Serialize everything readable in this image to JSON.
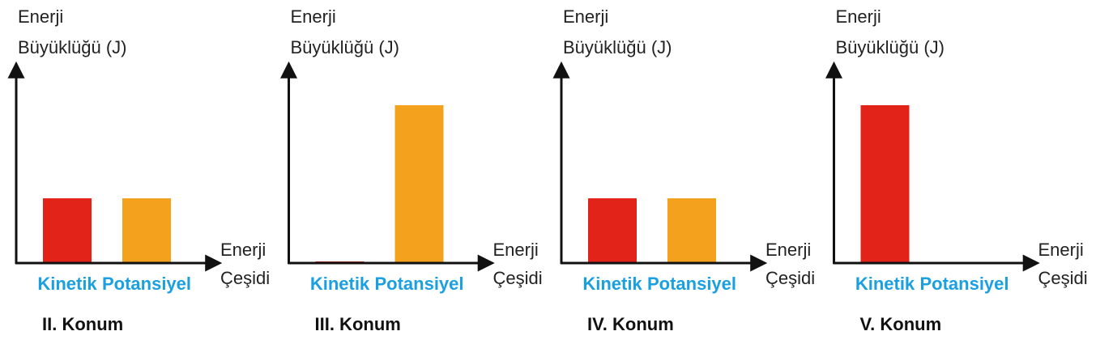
{
  "chart_data": [
    {
      "type": "bar",
      "title": "II. Konum",
      "ylabel": [
        "Enerji",
        "Büyüklüğü (J)"
      ],
      "xlabel": [
        "Enerji",
        "Çeşidi"
      ],
      "categories": [
        "Kinetik",
        "Potansiyel"
      ],
      "values": [
        80,
        80
      ],
      "colors": [
        "#e2231a",
        "#f4a11d"
      ],
      "ylim": [
        0,
        240
      ]
    },
    {
      "type": "bar",
      "title": "III. Konum",
      "ylabel": [
        "Enerji",
        "Büyüklüğü (J)"
      ],
      "xlabel": [
        "Enerji",
        "Çeşidi"
      ],
      "categories": [
        "Kinetik",
        "Potansiyel"
      ],
      "values": [
        2,
        195
      ],
      "colors": [
        "#e2231a",
        "#f4a11d"
      ],
      "ylim": [
        0,
        240
      ]
    },
    {
      "type": "bar",
      "title": "IV. Konum",
      "ylabel": [
        "Enerji",
        "Büyüklüğü (J)"
      ],
      "xlabel": [
        "Enerji",
        "Çeşidi"
      ],
      "categories": [
        "Kinetik",
        "Potansiyel"
      ],
      "values": [
        80,
        80
      ],
      "colors": [
        "#e2231a",
        "#f4a11d"
      ],
      "ylim": [
        0,
        240
      ]
    },
    {
      "type": "bar",
      "title": "V. Konum",
      "ylabel": [
        "Enerji",
        "Büyüklüğü (J)"
      ],
      "xlabel": [
        "Enerji",
        "Çeşidi"
      ],
      "categories": [
        "Kinetik",
        "Potansiyel"
      ],
      "values": [
        195,
        1
      ],
      "colors": [
        "#e2231a",
        "#f4a11d"
      ],
      "ylim": [
        0,
        240
      ]
    }
  ]
}
